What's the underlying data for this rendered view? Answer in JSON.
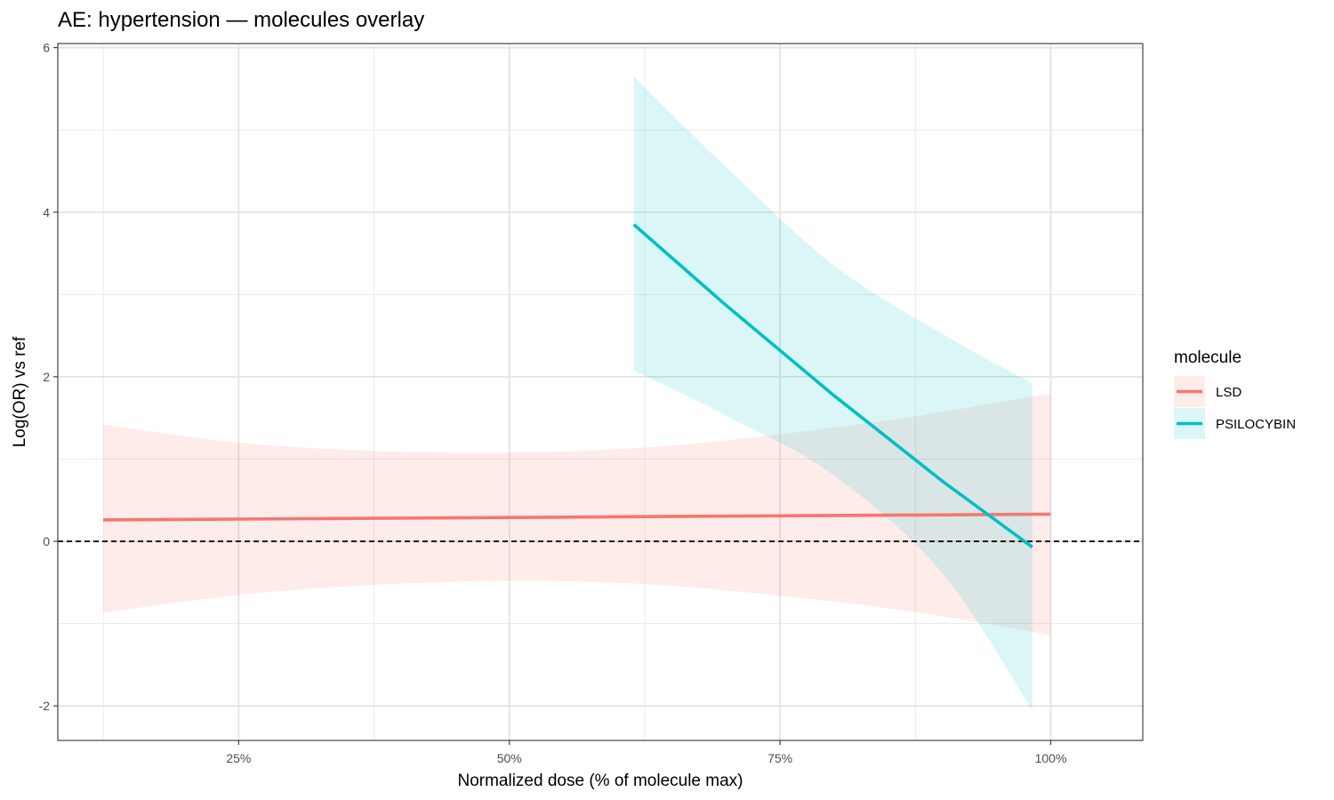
{
  "chart_data": {
    "type": "line",
    "title": "AE: hypertension — molecules overlay",
    "xlabel": "Normalized dose (% of molecule max)",
    "ylabel": "Log(OR) vs ref",
    "xlim": [
      0.083,
      1.085
    ],
    "ylim": [
      -2.42,
      6.05
    ],
    "x_ticks": [
      0.25,
      0.5,
      0.75,
      1.0
    ],
    "x_tick_labels": [
      "25%",
      "50%",
      "75%",
      "100%"
    ],
    "x_minor_ticks": [
      0.125,
      0.375,
      0.625,
      0.875
    ],
    "y_ticks": [
      -2,
      0,
      2,
      4,
      6
    ],
    "y_tick_labels": [
      "-2",
      "0",
      "2",
      "4",
      "6"
    ],
    "y_minor_ticks": [
      -1,
      1,
      3,
      5
    ],
    "grid": true,
    "reference_line": {
      "y": 0,
      "style": "dashed",
      "color": "#000000"
    },
    "legend": {
      "title": "molecule",
      "placement": "right"
    },
    "series": [
      {
        "name": "LSD",
        "color": "#F8766D",
        "x": [
          0.125,
          0.25,
          0.375,
          0.5,
          0.625,
          0.75,
          0.875,
          1.0
        ],
        "y": [
          0.26,
          0.27,
          0.28,
          0.29,
          0.3,
          0.31,
          0.32,
          0.33
        ],
        "lower": [
          -0.87,
          -0.65,
          -0.53,
          -0.48,
          -0.52,
          -0.66,
          -0.86,
          -1.14
        ],
        "upper": [
          1.42,
          1.2,
          1.1,
          1.08,
          1.14,
          1.3,
          1.52,
          1.8
        ]
      },
      {
        "name": "PSILOCYBIN",
        "color": "#00BFC4",
        "x": [
          0.615,
          0.7,
          0.8,
          0.9,
          0.983
        ],
        "y": [
          3.85,
          2.87,
          1.77,
          0.73,
          -0.07
        ],
        "lower": [
          2.08,
          1.53,
          0.8,
          -0.39,
          -2.05
        ],
        "upper": [
          5.65,
          4.55,
          3.35,
          2.52,
          1.92
        ]
      }
    ]
  }
}
